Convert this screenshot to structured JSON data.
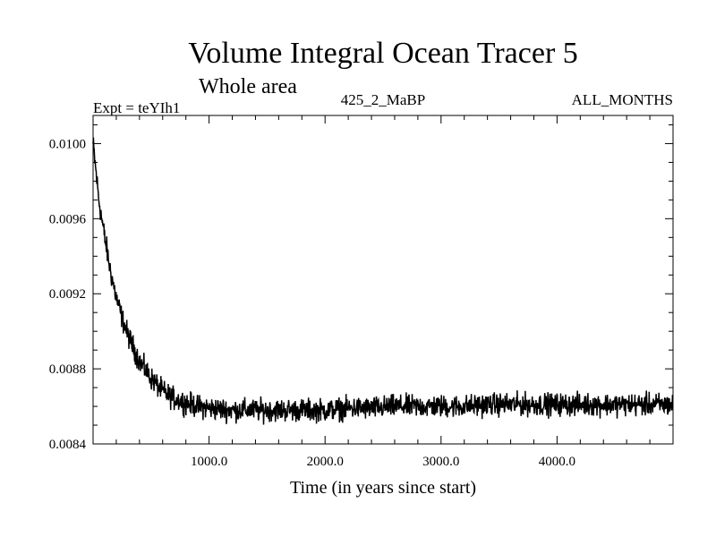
{
  "chart_data": {
    "type": "line",
    "title": "Volume Integral Ocean Tracer 5",
    "subtitle": "Whole area",
    "experiment_label": "Expt = teYIh1",
    "run_label": "425_2_MaBP",
    "period_label": "ALL_MONTHS",
    "xlabel": "Time (in years since start)",
    "ylabel": "",
    "xlim": [
      0,
      5000
    ],
    "ylim": [
      0.0084,
      0.01015
    ],
    "x_ticks": [
      1000,
      2000,
      3000,
      4000
    ],
    "x_tick_labels": [
      "1000.0",
      "2000.0",
      "3000.0",
      "4000.0"
    ],
    "y_ticks": [
      0.0084,
      0.0088,
      0.0092,
      0.0096,
      0.01
    ],
    "y_tick_labels": [
      "0.0084",
      "0.0088",
      "0.0092",
      "0.0096",
      "0.0100"
    ],
    "grid": false,
    "series": [
      {
        "color": "#000000",
        "x": [
          0,
          25,
          50,
          100,
          150,
          200,
          250,
          300,
          400,
          500,
          600,
          700,
          800,
          900,
          1000,
          1200,
          1400,
          1600,
          1800,
          2000,
          2200,
          2400,
          2600,
          2800,
          3000,
          3200,
          3400,
          3600,
          3800,
          4000,
          4200,
          4400,
          4600,
          4800,
          5000
        ],
        "values": [
          0.01,
          0.00985,
          0.0097,
          0.0095,
          0.00932,
          0.00918,
          0.00907,
          0.00898,
          0.00884,
          0.00875,
          0.00868,
          0.00864,
          0.00862,
          0.0086,
          0.00859,
          0.00858,
          0.00858,
          0.00858,
          0.00858,
          0.00858,
          0.00859,
          0.00859,
          0.0086,
          0.0086,
          0.0086,
          0.0086,
          0.00861,
          0.00861,
          0.00861,
          0.00861,
          0.00861,
          0.00861,
          0.00861,
          0.00861,
          0.00861
        ],
        "noise_amplitude": 7e-05
      }
    ]
  }
}
